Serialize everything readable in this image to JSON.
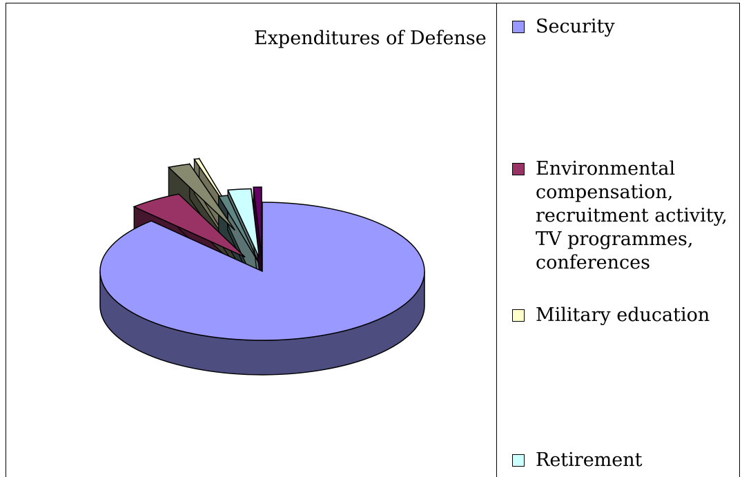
{
  "chart_data": {
    "type": "pie",
    "title": "Expenditures of Defense",
    "three_d": true,
    "exploded": true,
    "legend_position": "right",
    "slices": [
      {
        "name": "Security",
        "value": 88.0,
        "color": "#9999ff"
      },
      {
        "name": "Environmental compensation, recruitment activity, TV programmes, conferences",
        "value": 5.3,
        "color": "#993366"
      },
      {
        "name": "",
        "value": 2.2,
        "color": "#878a6e"
      },
      {
        "name": "Military education",
        "value": 0.5,
        "color": "#ffffcc"
      },
      {
        "name": "",
        "value": 0.9,
        "color": "#5f8585"
      },
      {
        "name": "Retirement",
        "value": 2.3,
        "color": "#ccffff"
      },
      {
        "name": "",
        "value": 0.8,
        "color": "#660066"
      }
    ]
  },
  "legend": [
    {
      "label": "Security",
      "color": "#9999ff"
    },
    {
      "label": "Environmental compensation, recruitment activity, TV programmes, conferences",
      "color": "#993366"
    },
    {
      "label": "Military education",
      "color": "#ffffcc"
    },
    {
      "label": "Retirement",
      "color": "#ccffff"
    }
  ]
}
